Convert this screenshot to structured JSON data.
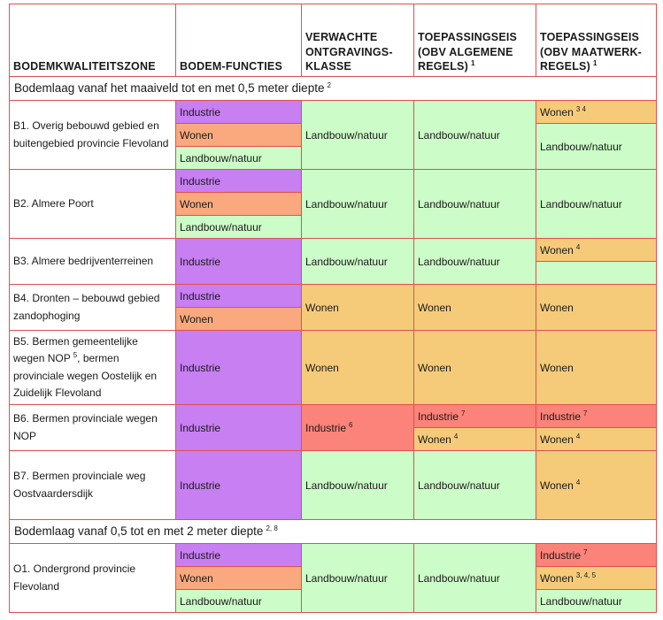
{
  "colors": {
    "industrie": "#c77ff2",
    "wonen": "#f9a97d",
    "landbouw_natuur": "#ccfcc7",
    "wonen_toepassing": "#f5cb7a",
    "industrie_toepassing": "#fb8379",
    "grid_line": "#e05050"
  },
  "header": {
    "zone": "BODEMKWALITEITSZONE",
    "functies": "BODEM-FUNCTIES",
    "klasse": "VERWACHTE ONTGRAVINGS-KLASSE",
    "algemeen": "TOEPASSINGSEIS (OBV ALGEMENE REGELS)",
    "algemeen_sup": "1",
    "maatwerk": "TOEPASSINGSEIS (OBV MAATWERK-REGELS)",
    "maatwerk_sup": "1"
  },
  "sections": {
    "top": {
      "title": "Bodemlaag vanaf het maaiveld tot en met 0,5 meter diepte",
      "sup": "2"
    },
    "deep": {
      "title": "Bodemlaag vanaf 0,5 tot en met 2 meter diepte",
      "sup": "2, 8"
    }
  },
  "rows": {
    "b1": {
      "zone": "B1. Overig bebouwd gebied en buitengebied provincie Flevoland",
      "functies": [
        "Industrie",
        "Wonen",
        "Landbouw/natuur"
      ],
      "klasse": "Landbouw/natuur",
      "algemeen": "Landbouw/natuur",
      "maatwerk": [
        {
          "text": "Wonen",
          "sup": "3 4"
        },
        {
          "text": "Landbouw/natuur",
          "sup": ""
        }
      ]
    },
    "b2": {
      "zone": "B2. Almere Poort",
      "functies": [
        "Industrie",
        "Wonen",
        "Landbouw/natuur"
      ],
      "klasse": "Landbouw/natuur",
      "algemeen": "Landbouw/natuur",
      "maatwerk": [
        {
          "text": "Landbouw/natuur",
          "sup": ""
        }
      ]
    },
    "b3": {
      "zone": "B3. Almere bedrijventerreinen",
      "functies": [
        "Industrie"
      ],
      "klasse": "Landbouw/natuur",
      "algemeen": "Landbouw/natuur",
      "maatwerk": [
        {
          "text": "Wonen",
          "sup": "4"
        },
        {
          "text": "",
          "sup": ""
        }
      ]
    },
    "b4": {
      "zone": "B4. Dronten – bebouwd gebied zandophoging",
      "functies": [
        "Industrie",
        "Wonen"
      ],
      "klasse": "Wonen",
      "algemeen": "Wonen",
      "maatwerk": [
        {
          "text": "Wonen",
          "sup": ""
        }
      ]
    },
    "b5": {
      "zone_a": "B5. Bermen gemeentelijke wegen NOP",
      "zone_sup": "5",
      "zone_b": ", bermen provinciale wegen Oostelijk en Zuidelijk Flevoland",
      "functies": [
        "Industrie"
      ],
      "klasse": "Wonen",
      "algemeen": "Wonen",
      "maatwerk": [
        {
          "text": "Wonen",
          "sup": ""
        }
      ]
    },
    "b6": {
      "zone": "B6. Bermen provinciale wegen NOP",
      "functies": [
        "Industrie"
      ],
      "klasse": {
        "text": "Industrie",
        "sup": "6"
      },
      "algemeen": [
        {
          "text": "Industrie",
          "sup": "7"
        },
        {
          "text": "Wonen",
          "sup": "4"
        }
      ],
      "maatwerk": [
        {
          "text": "Industrie",
          "sup": "7"
        },
        {
          "text": "Wonen",
          "sup": "4"
        }
      ]
    },
    "b7": {
      "zone": "B7. Bermen provinciale weg Oostvaardersdijk",
      "functies": [
        "Industrie"
      ],
      "klasse": "Landbouw/natuur",
      "algemeen": "Landbouw/natuur",
      "maatwerk": [
        {
          "text": "Wonen",
          "sup": "4"
        }
      ]
    },
    "o1": {
      "zone": "O1. Ondergrond provincie Flevoland",
      "functies": [
        "Industrie",
        "Wonen",
        "Landbouw/natuur"
      ],
      "klasse": "Landbouw/natuur",
      "algemeen": "Landbouw/natuur",
      "maatwerk": [
        {
          "text": "Industrie",
          "sup": "7"
        },
        {
          "text": "Wonen",
          "sup": "3, 4, 5"
        },
        {
          "text": "Landbouw/natuur",
          "sup": ""
        }
      ]
    }
  }
}
